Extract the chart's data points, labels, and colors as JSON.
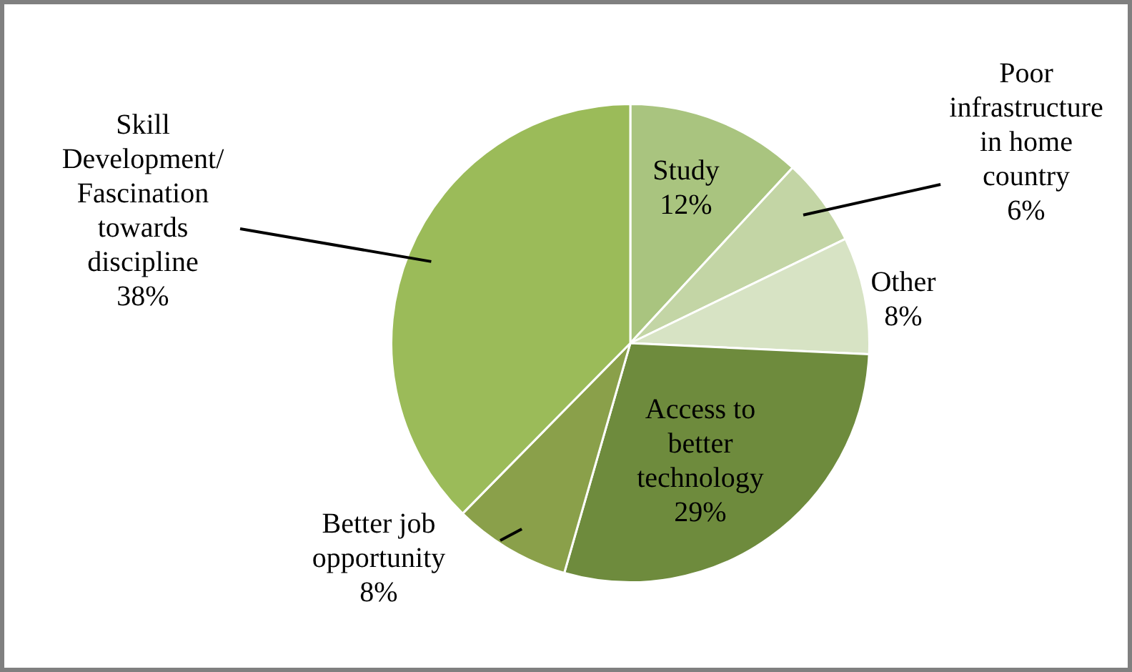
{
  "chart_data": {
    "type": "pie",
    "categories": [
      "Study",
      "Poor infrastructure in home country",
      "Other",
      "Access to better technology",
      "Better job opportunity",
      "Skill Development/ Fascination towards discipline"
    ],
    "values": [
      12,
      6,
      8,
      29,
      8,
      38
    ],
    "value_labels": [
      "12%",
      "6%",
      "8%",
      "29%",
      "8%",
      "38%"
    ],
    "colors": [
      "#a9c47f",
      "#c3d5a5",
      "#d7e3c4",
      "#6e8b3d",
      "#8aa04a",
      "#9bbb59"
    ],
    "legend": false
  }
}
